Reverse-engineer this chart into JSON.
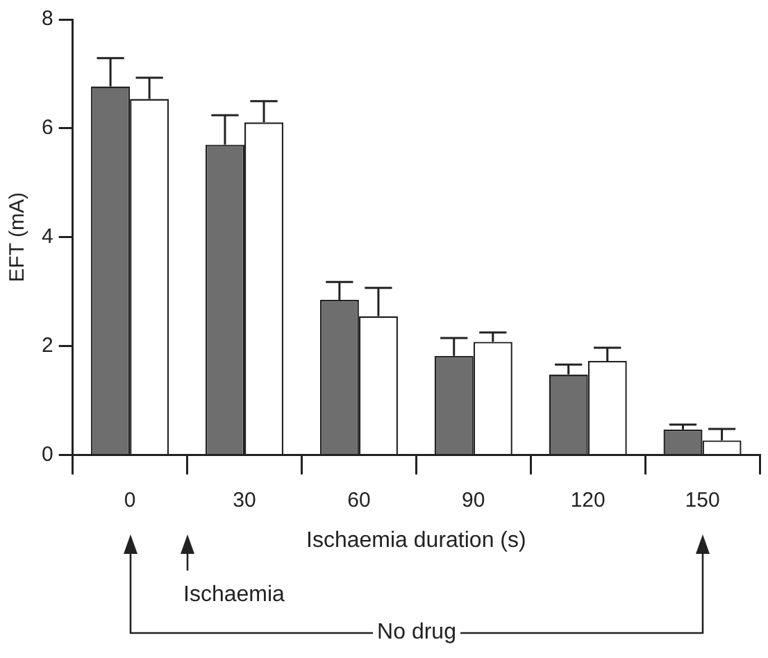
{
  "chart_data": {
    "type": "bar",
    "xlabel": "Ischaemia duration (s)",
    "ylabel": "EFT (mA)",
    "categories": [
      "0",
      "30",
      "60",
      "90",
      "120",
      "150"
    ],
    "series": [
      {
        "color": "#6e6e6e",
        "values": [
          6.77,
          5.7,
          2.85,
          1.82,
          1.48,
          0.47
        ],
        "errors": [
          [
            6.77,
            7.29
          ],
          [
            5.7,
            6.24
          ],
          [
            2.85,
            3.18
          ],
          [
            1.82,
            2.15
          ],
          [
            1.48,
            1.66
          ],
          [
            0.47,
            0.56
          ]
        ]
      },
      {
        "color": "#ffffff",
        "values": [
          6.54,
          6.11,
          2.55,
          2.08,
          1.73,
          0.27
        ],
        "errors": [
          [
            6.54,
            6.93
          ],
          [
            6.11,
            6.5
          ],
          [
            2.55,
            3.07
          ],
          [
            2.08,
            2.25
          ],
          [
            1.73,
            1.97
          ],
          [
            0.27,
            0.48
          ]
        ]
      }
    ],
    "ylim": [
      0,
      8
    ],
    "yticks": [
      0,
      2,
      4,
      6,
      8
    ],
    "grid": false,
    "legend": false,
    "annotations": [
      "Ischaemia",
      "No drug"
    ]
  }
}
